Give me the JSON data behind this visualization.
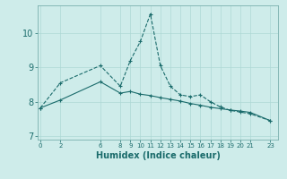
{
  "xlabel": "Humidex (Indice chaleur)",
  "bg_color": "#ceecea",
  "line_color": "#1a6b6b",
  "grid_color": "#aed8d5",
  "x_ticks": [
    0,
    2,
    6,
    8,
    9,
    10,
    11,
    12,
    13,
    14,
    15,
    16,
    17,
    18,
    19,
    20,
    21,
    23
  ],
  "y_ticks": [
    7,
    8,
    9,
    10
  ],
  "series1_x": [
    0,
    2,
    6,
    8,
    9,
    10,
    11,
    12,
    13,
    14,
    15,
    16,
    17,
    18,
    19,
    20,
    21,
    23
  ],
  "series1_y": [
    7.82,
    8.55,
    9.05,
    8.45,
    9.2,
    9.75,
    10.55,
    9.05,
    8.45,
    8.2,
    8.15,
    8.2,
    8.0,
    7.85,
    7.75,
    7.7,
    7.65,
    7.45
  ],
  "series2_x": [
    0,
    2,
    6,
    8,
    9,
    10,
    11,
    12,
    13,
    14,
    15,
    16,
    17,
    18,
    19,
    20,
    21,
    23
  ],
  "series2_y": [
    7.82,
    8.05,
    8.58,
    8.25,
    8.3,
    8.22,
    8.18,
    8.12,
    8.07,
    8.02,
    7.95,
    7.9,
    7.84,
    7.8,
    7.76,
    7.73,
    7.69,
    7.45
  ],
  "xlim": [
    -0.3,
    23.8
  ],
  "ylim": [
    6.9,
    10.8
  ]
}
